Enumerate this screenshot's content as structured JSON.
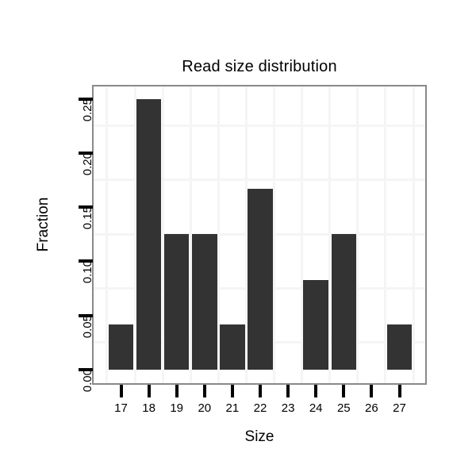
{
  "chart_data": {
    "type": "bar",
    "title": "Read size distribution",
    "xlabel": "Size",
    "ylabel": "Fraction",
    "categories": [
      "17",
      "18",
      "19",
      "20",
      "21",
      "22",
      "23",
      "24",
      "25",
      "26",
      "27"
    ],
    "values": [
      0.042,
      0.25,
      0.125,
      0.125,
      0.042,
      0.167,
      0,
      0.083,
      0.125,
      0,
      0.042
    ],
    "y_ticks": [
      {
        "value": 0.0,
        "label": "0.00"
      },
      {
        "value": 0.05,
        "label": "0.05"
      },
      {
        "value": 0.1,
        "label": "0.10"
      },
      {
        "value": 0.15,
        "label": "0.15"
      },
      {
        "value": 0.2,
        "label": "0.20"
      },
      {
        "value": 0.25,
        "label": "0.25"
      }
    ],
    "y_minor_gridlines": [
      0.025,
      0.075,
      0.125,
      0.175,
      0.225
    ],
    "x_minor_gridlines_between_categories": true,
    "ylim": [
      0,
      0.275
    ],
    "grid": "minor-only",
    "legend": "none",
    "colors": {
      "bar": "#333333",
      "gridline": "#f5f5f5",
      "panel_border": "#898989",
      "tick": "#000000",
      "text": "#000000",
      "background": "#ffffff"
    }
  }
}
